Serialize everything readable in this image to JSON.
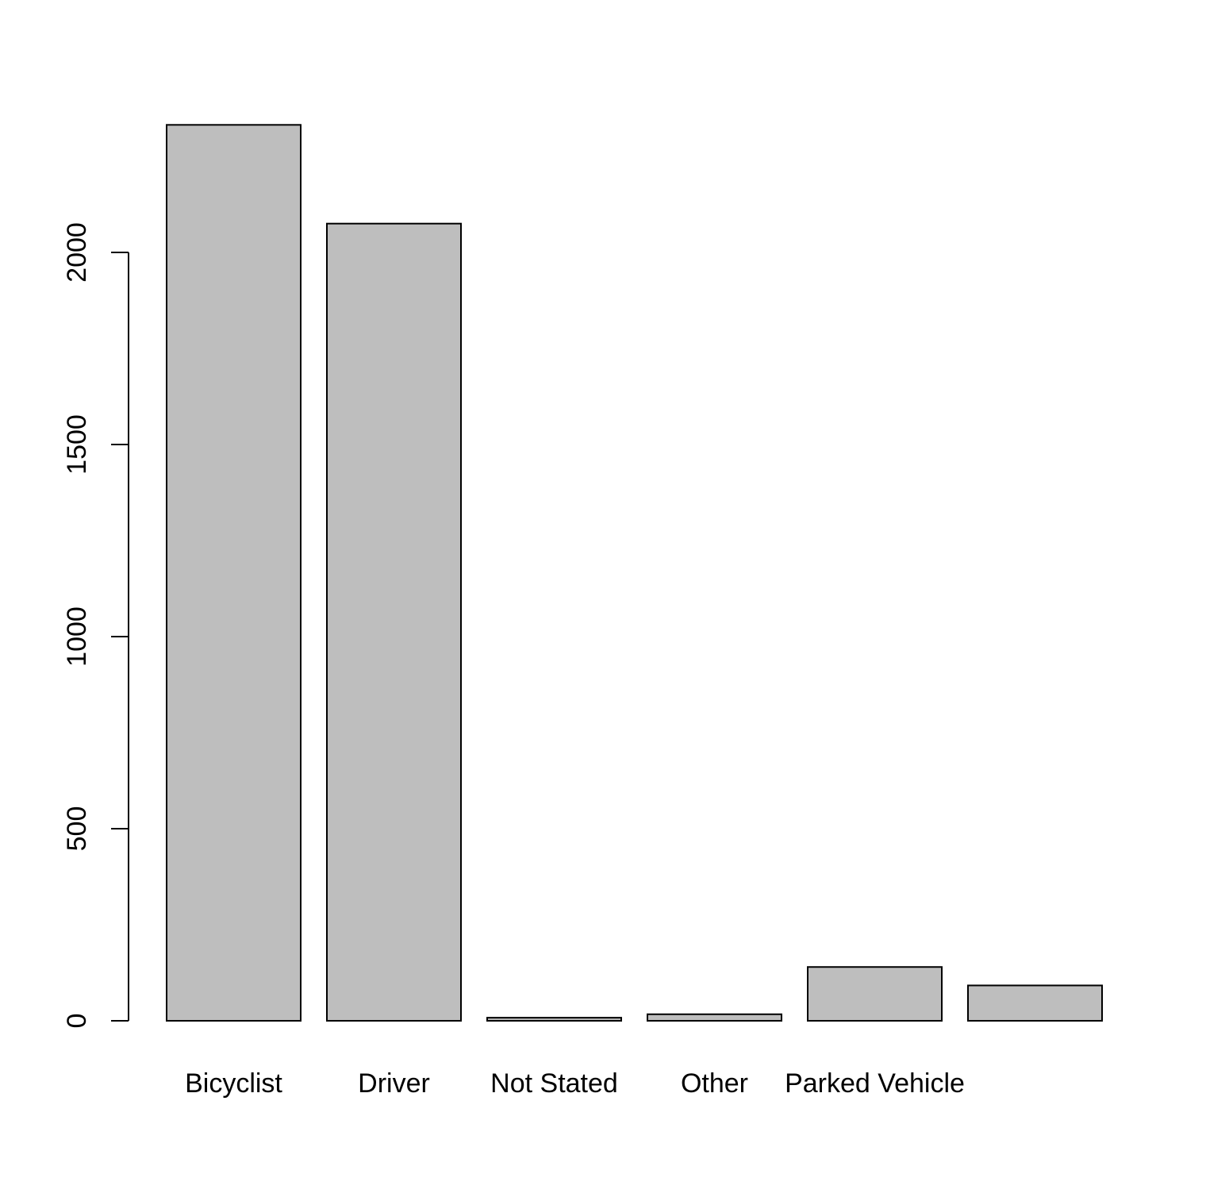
{
  "chart_data": {
    "type": "bar",
    "title": "",
    "xlabel": "",
    "ylabel": "",
    "categories": [
      "Bicyclist",
      "Driver",
      "Not Stated",
      "Other",
      "Parked Vehicle",
      ""
    ],
    "values": [
      2332,
      2075,
      8,
      17,
      140,
      92
    ],
    "ylim": [
      0,
      2332
    ],
    "yticks": [
      0,
      500,
      1000,
      1500,
      2000
    ],
    "bar_color": "#bebebe",
    "grid": false,
    "legend": "none"
  }
}
